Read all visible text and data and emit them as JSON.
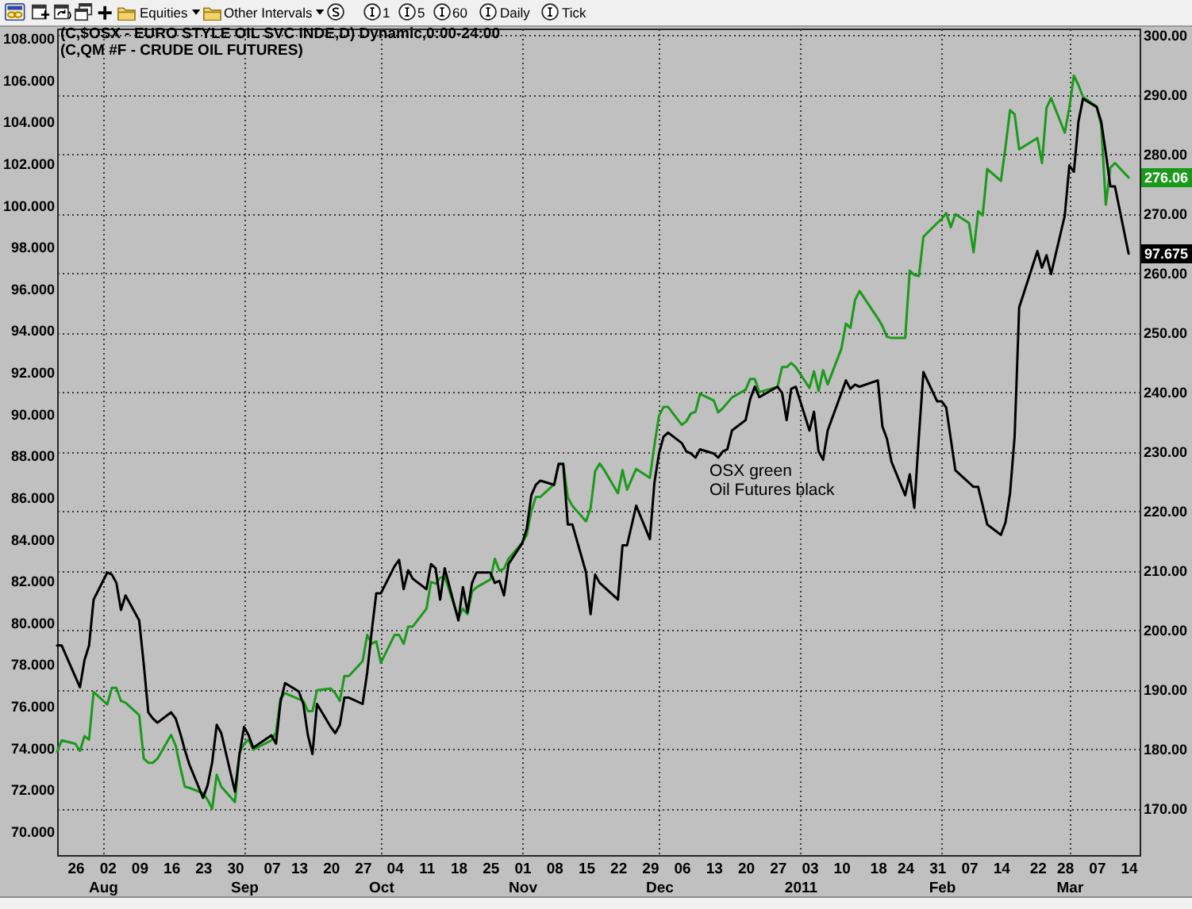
{
  "chart_data": {
    "type": "line",
    "title": "(C,$OSX - EURO STYLE OIL SVC INDE,D) Dynamic,0:00-24:00",
    "subtitle": "(C,QM #F - CRUDE OIL FUTURES)",
    "annotations": [
      "Equities",
      "Other Intervals",
      "1",
      "5",
      "60",
      "Daily",
      "Tick",
      "OSX green",
      "Oil Futures black"
    ],
    "x": [
      "2010-07-22",
      "2010-07-23",
      "2010-07-26",
      "2010-07-27",
      "2010-07-28",
      "2010-07-29",
      "2010-07-30",
      "2010-08-02",
      "2010-08-03",
      "2010-08-04",
      "2010-08-05",
      "2010-08-06",
      "2010-08-09",
      "2010-08-10",
      "2010-08-11",
      "2010-08-12",
      "2010-08-13",
      "2010-08-16",
      "2010-08-17",
      "2010-08-18",
      "2010-08-19",
      "2010-08-20",
      "2010-08-23",
      "2010-08-24",
      "2010-08-25",
      "2010-08-26",
      "2010-08-27",
      "2010-08-30",
      "2010-08-31",
      "2010-09-01",
      "2010-09-02",
      "2010-09-03",
      "2010-09-07",
      "2010-09-08",
      "2010-09-09",
      "2010-09-10",
      "2010-09-13",
      "2010-09-14",
      "2010-09-15",
      "2010-09-16",
      "2010-09-17",
      "2010-09-20",
      "2010-09-21",
      "2010-09-22",
      "2010-09-23",
      "2010-09-24",
      "2010-09-27",
      "2010-09-28",
      "2010-09-29",
      "2010-09-30",
      "2010-10-01",
      "2010-10-04",
      "2010-10-05",
      "2010-10-06",
      "2010-10-07",
      "2010-10-08",
      "2010-10-11",
      "2010-10-12",
      "2010-10-13",
      "2010-10-14",
      "2010-10-15",
      "2010-10-18",
      "2010-10-19",
      "2010-10-20",
      "2010-10-21",
      "2010-10-22",
      "2010-10-25",
      "2010-10-26",
      "2010-10-27",
      "2010-10-28",
      "2010-10-29",
      "2010-11-01",
      "2010-11-02",
      "2010-11-03",
      "2010-11-04",
      "2010-11-05",
      "2010-11-08",
      "2010-11-09",
      "2010-11-10",
      "2010-11-11",
      "2010-11-12",
      "2010-11-15",
      "2010-11-16",
      "2010-11-17",
      "2010-11-18",
      "2010-11-19",
      "2010-11-22",
      "2010-11-23",
      "2010-11-24",
      "2010-11-26",
      "2010-11-29",
      "2010-11-30",
      "2010-12-01",
      "2010-12-02",
      "2010-12-03",
      "2010-12-06",
      "2010-12-07",
      "2010-12-08",
      "2010-12-09",
      "2010-12-10",
      "2010-12-13",
      "2010-12-14",
      "2010-12-15",
      "2010-12-16",
      "2010-12-17",
      "2010-12-20",
      "2010-12-21",
      "2010-12-22",
      "2010-12-23",
      "2010-12-27",
      "2010-12-28",
      "2010-12-29",
      "2010-12-30",
      "2010-12-31",
      "2011-01-03",
      "2011-01-04",
      "2011-01-05",
      "2011-01-06",
      "2011-01-07",
      "2011-01-10",
      "2011-01-11",
      "2011-01-12",
      "2011-01-13",
      "2011-01-14",
      "2011-01-18",
      "2011-01-19",
      "2011-01-20",
      "2011-01-21",
      "2011-01-24",
      "2011-01-25",
      "2011-01-26",
      "2011-01-27",
      "2011-01-28",
      "2011-01-31",
      "2011-02-01",
      "2011-02-02",
      "2011-02-03",
      "2011-02-04",
      "2011-02-07",
      "2011-02-08",
      "2011-02-09",
      "2011-02-10",
      "2011-02-11",
      "2011-02-14",
      "2011-02-15",
      "2011-02-16",
      "2011-02-17",
      "2011-02-18",
      "2011-02-22",
      "2011-02-23",
      "2011-02-24",
      "2011-02-25",
      "2011-02-28",
      "2011-03-01",
      "2011-03-02",
      "2011-03-03",
      "2011-03-04",
      "2011-03-07",
      "2011-03-08",
      "2011-03-09",
      "2011-03-10",
      "2011-03-11",
      "2011-03-14"
    ],
    "series": [
      {
        "color": "#1a9a1a",
        "axis": "y2",
        "values": [
          179.6,
          181.5,
          180.9,
          179.7,
          182.2,
          181.6,
          189.6,
          187.5,
          190.3,
          190.3,
          188.1,
          187.8,
          185.7,
          178.4,
          177.7,
          177.7,
          178.4,
          182.4,
          180.6,
          177.0,
          173.7,
          173.5,
          172.6,
          171.5,
          170.0,
          175.7,
          173.7,
          171.1,
          179.4,
          180.9,
          181.6,
          179.9,
          181.5,
          182.8,
          188.6,
          189.4,
          188.4,
          188.1,
          186.4,
          186.4,
          189.9,
          190.2,
          189.4,
          188.1,
          192.3,
          192.3,
          194.8,
          199.2,
          197.7,
          198.1,
          194.5,
          199.2,
          199.2,
          197.7,
          200.6,
          200.6,
          203.6,
          208.1,
          207.8,
          208.8,
          209.0,
          202.0,
          203.6,
          202.7,
          206.5,
          207.2,
          208.5,
          212.0,
          210.0,
          210.3,
          212.0,
          214.7,
          216.0,
          220.0,
          222.4,
          222.4,
          224.5,
          228.0,
          228.0,
          222.3,
          220.9,
          218.3,
          220.5,
          226.7,
          228.0,
          226.9,
          223.0,
          226.9,
          223.6,
          227.1,
          225.6,
          231.1,
          236.0,
          237.5,
          237.5,
          234.5,
          235.1,
          236.4,
          236.7,
          239.7,
          238.6,
          236.6,
          237.3,
          238.2,
          239.1,
          240.4,
          242.2,
          242.2,
          240.0,
          240.9,
          244.2,
          244.2,
          244.9,
          244.2,
          240.7,
          243.5,
          240.2,
          243.7,
          241.3,
          247.3,
          251.5,
          250.8,
          255.5,
          257.0,
          252.4,
          251.1,
          249.3,
          249.1,
          249.1,
          260.4,
          259.7,
          259.5,
          266.1,
          268.4,
          269.1,
          270.1,
          267.7,
          269.9,
          268.4,
          263.5,
          270.4,
          269.7,
          277.5,
          275.5,
          281.2,
          287.4,
          286.7,
          280.8,
          282.7,
          278.5,
          287.8,
          289.4,
          283.6,
          287.8,
          293.2,
          291.6,
          289.6,
          288.0,
          284.8,
          271.5,
          277.7,
          278.5,
          276.06
        ],
        "value_labels": [
          null,
          null,
          null,
          null,
          null,
          null,
          null,
          null,
          null,
          null,
          null,
          null,
          null,
          null,
          null,
          null,
          null,
          null,
          null,
          null,
          null,
          null,
          null,
          null,
          null,
          null,
          null,
          null,
          null,
          null,
          null,
          null,
          null,
          null,
          null,
          null,
          null,
          null,
          null,
          null,
          null,
          null,
          null,
          null,
          null,
          null,
          null,
          null,
          null,
          null,
          null,
          null,
          null,
          null,
          null,
          null,
          null,
          null,
          null,
          null,
          null,
          null,
          null,
          null,
          null,
          null,
          null,
          null,
          null,
          null,
          null,
          null,
          null,
          null,
          null,
          null,
          null,
          null,
          null,
          null,
          null,
          null,
          null,
          null,
          null,
          null,
          null,
          null,
          null,
          null,
          null,
          null,
          null,
          null,
          null,
          null,
          null,
          null,
          null,
          null,
          null,
          null,
          null,
          null,
          null,
          null,
          null,
          null,
          null,
          null,
          null,
          null,
          null,
          null,
          null,
          null,
          null,
          null,
          null,
          null,
          null,
          null,
          null,
          null,
          null,
          null,
          null,
          null,
          null,
          null,
          null,
          null,
          null,
          null,
          null,
          null,
          null,
          null,
          null,
          null,
          null,
          null,
          null,
          null,
          null,
          null,
          null,
          null,
          null,
          null,
          null,
          null,
          null,
          null,
          null,
          null,
          null,
          null,
          null,
          null,
          null,
          null,
          "276.06"
        ]
      },
      {
        "color": "#000000",
        "values": [
          78.9,
          78.9,
          77.4,
          76.9,
          78.2,
          78.9,
          81.1,
          82.4,
          82.3,
          81.9,
          80.6,
          81.3,
          80.1,
          78.0,
          75.7,
          75.4,
          75.2,
          75.7,
          75.4,
          74.7,
          73.9,
          73.2,
          71.6,
          72.2,
          73.3,
          75.1,
          74.7,
          71.9,
          73.7,
          75.0,
          74.6,
          74.0,
          74.6,
          74.2,
          76.2,
          77.1,
          76.7,
          76.1,
          74.6,
          73.7,
          76.1,
          75.0,
          74.7,
          75.1,
          76.4,
          76.4,
          76.1,
          77.6,
          79.6,
          81.4,
          81.4,
          82.7,
          83.0,
          81.6,
          82.5,
          82.1,
          81.6,
          82.8,
          82.6,
          81.1,
          82.6,
          80.1,
          81.7,
          80.5,
          81.9,
          82.4,
          82.4,
          81.9,
          82.0,
          81.3,
          82.8,
          83.8,
          84.5,
          86.1,
          86.6,
          86.8,
          86.6,
          87.6,
          87.6,
          84.7,
          84.7,
          82.4,
          80.4,
          82.3,
          81.9,
          81.7,
          81.1,
          83.7,
          83.7,
          85.6,
          84.0,
          86.7,
          88.1,
          88.9,
          89.1,
          88.6,
          88.2,
          88.1,
          87.9,
          88.3,
          88.1,
          87.9,
          88.2,
          88.3,
          89.2,
          89.7,
          90.7,
          91.3,
          90.8,
          91.3,
          91.0,
          89.7,
          91.2,
          91.3,
          89.2,
          90.1,
          88.2,
          87.8,
          89.2,
          91.0,
          91.6,
          91.2,
          91.4,
          91.3,
          91.6,
          89.4,
          88.8,
          87.7,
          86.1,
          87.1,
          85.5,
          88.9,
          92.0,
          90.6,
          90.6,
          90.3,
          88.8,
          87.3,
          86.7,
          86.5,
          86.5,
          85.6,
          84.7,
          84.2,
          84.8,
          86.2,
          88.9,
          95.1,
          97.8,
          97.0,
          97.6,
          96.7,
          99.5,
          101.9,
          101.6,
          104.0,
          105.1,
          104.7,
          104.0,
          102.5,
          100.9,
          100.9,
          97.675
        ],
        "value_labels": [
          null,
          null,
          null,
          null,
          null,
          null,
          null,
          null,
          null,
          null,
          null,
          null,
          null,
          null,
          null,
          null,
          null,
          null,
          null,
          null,
          null,
          null,
          null,
          null,
          null,
          null,
          null,
          null,
          null,
          null,
          null,
          null,
          null,
          null,
          null,
          null,
          null,
          null,
          null,
          null,
          null,
          null,
          null,
          null,
          null,
          null,
          null,
          null,
          null,
          null,
          null,
          null,
          null,
          null,
          null,
          null,
          null,
          null,
          null,
          null,
          null,
          null,
          null,
          null,
          null,
          null,
          null,
          null,
          null,
          null,
          null,
          null,
          null,
          null,
          null,
          null,
          null,
          null,
          null,
          null,
          null,
          null,
          null,
          null,
          null,
          null,
          null,
          null,
          null,
          null,
          null,
          null,
          null,
          null,
          null,
          null,
          null,
          null,
          null,
          null,
          null,
          null,
          null,
          null,
          null,
          null,
          null,
          null,
          null,
          null,
          null,
          null,
          null,
          null,
          null,
          null,
          null,
          null,
          null,
          null,
          null,
          null,
          null,
          null,
          null,
          null,
          null,
          null,
          null,
          null,
          null,
          null,
          null,
          null,
          null,
          null,
          null,
          null,
          null,
          null,
          null,
          null,
          null,
          null,
          null,
          null,
          null,
          null,
          null,
          null,
          null,
          null,
          null,
          null,
          null,
          null,
          null,
          null,
          null,
          null,
          null,
          null,
          "97.675"
        ]
      }
    ],
    "xlim": [
      "2010-07-22",
      "2011-03-16T10:00"
    ],
    "xticks": [
      {
        "value": "2010-07-26",
        "label": "26"
      },
      {
        "value": "2010-08-02",
        "label": "02"
      },
      {
        "value": "2010-08-09",
        "label": "09"
      },
      {
        "value": "2010-08-16",
        "label": "16"
      },
      {
        "value": "2010-08-23",
        "label": "23"
      },
      {
        "value": "2010-08-30",
        "label": "30"
      },
      {
        "value": "2010-09-07",
        "label": "07"
      },
      {
        "value": "2010-09-13",
        "label": "13"
      },
      {
        "value": "2010-09-20",
        "label": "20"
      },
      {
        "value": "2010-09-27",
        "label": "27"
      },
      {
        "value": "2010-10-04",
        "label": "04"
      },
      {
        "value": "2010-10-11",
        "label": "11"
      },
      {
        "value": "2010-10-18",
        "label": "18"
      },
      {
        "value": "2010-10-25",
        "label": "25"
      },
      {
        "value": "2010-11-01",
        "label": "01"
      },
      {
        "value": "2010-11-08",
        "label": "08"
      },
      {
        "value": "2010-11-15",
        "label": "15"
      },
      {
        "value": "2010-11-22",
        "label": "22"
      },
      {
        "value": "2010-11-29",
        "label": "29"
      },
      {
        "value": "2010-12-06",
        "label": "06"
      },
      {
        "value": "2010-12-13",
        "label": "13"
      },
      {
        "value": "2010-12-20",
        "label": "20"
      },
      {
        "value": "2010-12-27",
        "label": "27"
      },
      {
        "value": "2011-01-03",
        "label": "03"
      },
      {
        "value": "2011-01-10",
        "label": "10"
      },
      {
        "value": "2011-01-18",
        "label": "18"
      },
      {
        "value": "2011-01-24",
        "label": "24"
      },
      {
        "value": "2011-01-31",
        "label": "31"
      },
      {
        "value": "2011-02-07",
        "label": "07"
      },
      {
        "value": "2011-02-14",
        "label": "14"
      },
      {
        "value": "2011-02-22",
        "label": "22"
      },
      {
        "value": "2011-02-28",
        "label": "28"
      },
      {
        "value": "2011-03-07",
        "label": "07"
      },
      {
        "value": "2011-03-14",
        "label": "14"
      }
    ],
    "x2lim": [
      "2010-07-22",
      "2011-03-16T10:00"
    ],
    "x2ticks": [
      {
        "value": "2010-08-01",
        "label": "Aug"
      },
      {
        "value": "2010-09-01",
        "label": "Sep"
      },
      {
        "value": "2010-10-01",
        "label": "Oct"
      },
      {
        "value": "2010-11-01",
        "label": "Nov"
      },
      {
        "value": "2010-12-01",
        "label": "Dec"
      },
      {
        "value": "2011-01-01",
        "label": "2011"
      },
      {
        "value": "2011-02-01",
        "label": "Feb"
      },
      {
        "value": "2011-03-01",
        "label": "Mar"
      }
    ],
    "ylim": [
      68.86,
      108.46
    ],
    "yticks": [
      {
        "value": 70,
        "label": "70.000"
      },
      {
        "value": 72,
        "label": "72.000"
      },
      {
        "value": 74,
        "label": "74.000"
      },
      {
        "value": 76,
        "label": "76.000"
      },
      {
        "value": 78,
        "label": "78.000"
      },
      {
        "value": 80,
        "label": "80.000"
      },
      {
        "value": 82,
        "label": "82.000"
      },
      {
        "value": 84,
        "label": "84.000"
      },
      {
        "value": 86,
        "label": "86.000"
      },
      {
        "value": 88,
        "label": "88.000"
      },
      {
        "value": 90,
        "label": "90.000"
      },
      {
        "value": 92,
        "label": "92.000"
      },
      {
        "value": 94,
        "label": "94.000"
      },
      {
        "value": 96,
        "label": "96.000"
      },
      {
        "value": 98,
        "label": "98.000"
      },
      {
        "value": 100,
        "label": "100.000"
      },
      {
        "value": 102,
        "label": "102.000"
      },
      {
        "value": 104,
        "label": "104.000"
      },
      {
        "value": 106,
        "label": "106.000"
      },
      {
        "value": 108,
        "label": "108.000"
      }
    ],
    "y2lim": [
      162.2,
      301.1
    ],
    "y2ticks": [
      {
        "value": 170,
        "label": "170.00"
      },
      {
        "value": 180,
        "label": "180.00"
      },
      {
        "value": 190,
        "label": "190.00"
      },
      {
        "value": 200,
        "label": "200.00"
      },
      {
        "value": 210,
        "label": "210.00"
      },
      {
        "value": 220,
        "label": "220.00"
      },
      {
        "value": 230,
        "label": "230.00"
      },
      {
        "value": 240,
        "label": "240.00"
      },
      {
        "value": 250,
        "label": "250.00"
      },
      {
        "value": 260,
        "label": "260.00"
      },
      {
        "value": 270,
        "label": "270.00"
      },
      {
        "value": 280,
        "label": "280.00"
      },
      {
        "value": 290,
        "label": "290.00"
      },
      {
        "value": 300,
        "label": "300.00"
      }
    ],
    "grid": true
  }
}
